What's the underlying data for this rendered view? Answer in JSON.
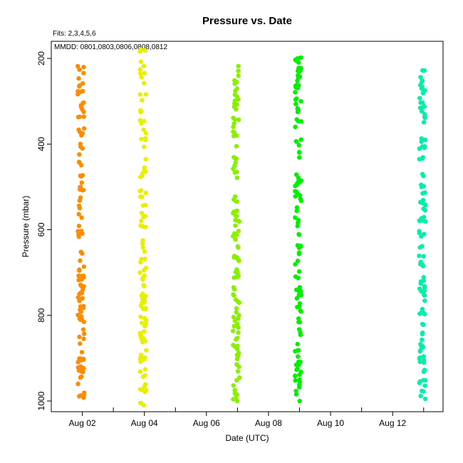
{
  "chart_data": {
    "type": "scatter",
    "title": "Pressure  vs. Date",
    "notes": [
      "Fits: 2,3,4,5,6",
      "MMDD: 0801,0803,0806,0808,0812"
    ],
    "xlabel": "Date (UTC)",
    "ylabel": "Pressure (mbar)",
    "x_axis": {
      "type": "date",
      "range": [
        "2024-08-01T00:00",
        "2024-08-13T15:00"
      ],
      "ticks": [
        "Aug 02",
        "Aug 04",
        "Aug 06",
        "Aug 08",
        "Aug 10",
        "Aug 12"
      ],
      "tick_values": [
        "2024-08-02",
        "2024-08-04",
        "2024-08-06",
        "2024-08-08",
        "2024-08-10",
        "2024-08-12"
      ]
    },
    "y_axis": {
      "reversed": true,
      "range": [
        1025,
        160
      ],
      "ticks": [
        "200",
        "400",
        "600",
        "800",
        "1000"
      ],
      "tick_values": [
        200,
        400,
        600,
        800,
        1000
      ]
    },
    "grid": false,
    "legend": null,
    "series": [
      {
        "color": "#ff8c00",
        "x": "2024-08-01T23:00",
        "y_range": [
          218,
          992
        ],
        "n": 120
      },
      {
        "color": "#e8f000",
        "x": "2024-08-03T23:00",
        "y_range": [
          180,
          1010
        ],
        "n": 115
      },
      {
        "color": "#88f000",
        "x": "2024-08-06T23:00",
        "y_range": [
          218,
          1000
        ],
        "n": 115
      },
      {
        "color": "#00f000",
        "x": "2024-08-08T23:00",
        "y_range": [
          198,
          1000
        ],
        "n": 125
      },
      {
        "color": "#00f0a8",
        "x": "2024-08-12T23:00",
        "y_range": [
          228,
          995
        ],
        "n": 110
      }
    ]
  }
}
